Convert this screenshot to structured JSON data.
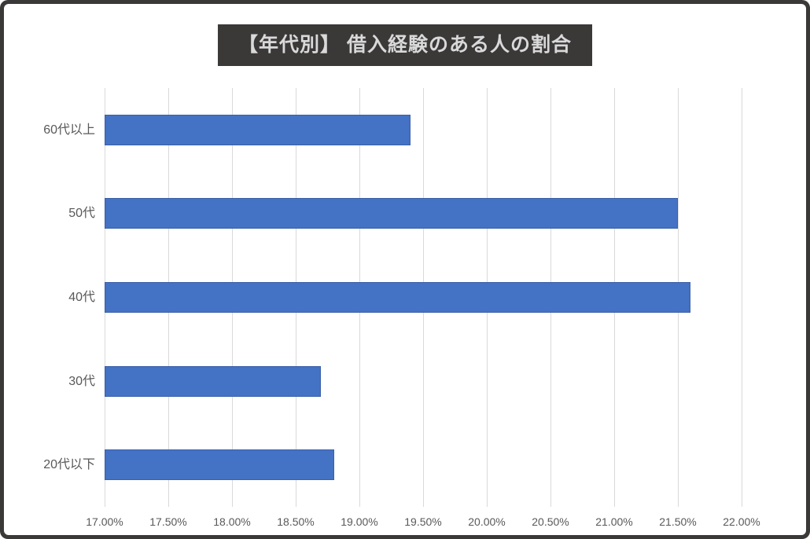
{
  "frame": {
    "border_color": "#3b3838",
    "background_color": "#ffffff"
  },
  "chart_data": {
    "type": "bar",
    "orientation": "horizontal",
    "title": "【年代別】 借入経験のある人の割合",
    "categories": [
      "60代以上",
      "50代",
      "40代",
      "30代",
      "20代以下"
    ],
    "values": [
      19.4,
      21.5,
      21.6,
      18.7,
      18.8
    ],
    "value_unit": "%",
    "xlabel": "",
    "ylabel": "",
    "xlim": [
      17.0,
      22.0
    ],
    "x_tick_step": 0.5,
    "x_tick_labels": [
      "17.00%",
      "17.50%",
      "18.00%",
      "18.50%",
      "19.00%",
      "19.50%",
      "20.00%",
      "20.50%",
      "21.00%",
      "21.50%",
      "22.00%"
    ],
    "grid": "vertical-only",
    "legend": "none",
    "colors": {
      "bar_fill": "#4472c4",
      "bar_border": "#3a5fa8",
      "gridline": "#d9d9d9",
      "axis_label": "#595959",
      "title_background": "#3b3838",
      "title_text": "#d9d9d9"
    }
  }
}
